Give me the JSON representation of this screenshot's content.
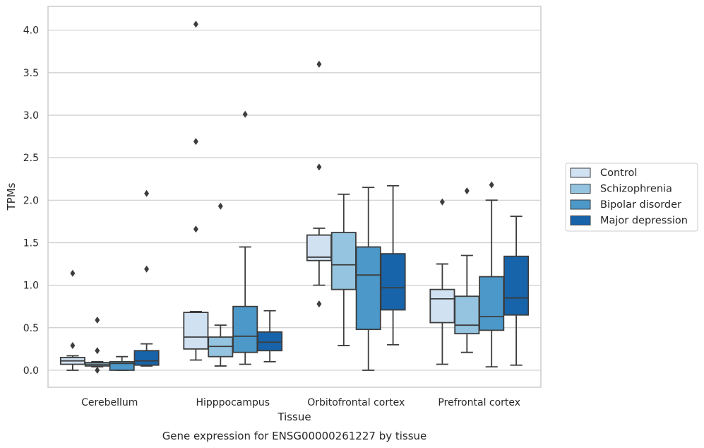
{
  "chart_data": {
    "type": "box",
    "xlabel": "Tissue",
    "ylabel": "TPMs",
    "caption": "Gene expression for ENSG00000261227 by tissue",
    "ylim": [
      -0.2,
      4.28
    ],
    "yticks": [
      0.0,
      0.5,
      1.0,
      1.5,
      2.0,
      2.5,
      3.0,
      3.5,
      4.0
    ],
    "yticklabels": [
      "0.0",
      "0.5",
      "1.0",
      "1.5",
      "2.0",
      "2.5",
      "3.0",
      "3.5",
      "4.0"
    ],
    "grid": "horizontal",
    "legend_position": "right",
    "categories": [
      "Cerebellum",
      "Hipppocampus",
      "Orbitofrontal cortex",
      "Prefrontal cortex"
    ],
    "series": [
      {
        "name": "Control",
        "color": "#d0e1f2",
        "boxes": [
          {
            "whislo": 0.0,
            "q1": 0.07,
            "med": 0.11,
            "q3": 0.15,
            "whishi": 0.17,
            "fliers": [
              0.29,
              1.14
            ]
          },
          {
            "whislo": 0.12,
            "q1": 0.25,
            "med": 0.39,
            "q3": 0.68,
            "whishi": 0.69,
            "fliers": [
              1.66,
              2.69,
              4.07
            ]
          },
          {
            "whislo": 1.0,
            "q1": 1.29,
            "med": 1.33,
            "q3": 1.59,
            "whishi": 1.67,
            "fliers": [
              0.78,
              2.39,
              3.6
            ]
          },
          {
            "whislo": 0.07,
            "q1": 0.56,
            "med": 0.84,
            "q3": 0.95,
            "whishi": 1.25,
            "fliers": [
              1.98
            ]
          }
        ]
      },
      {
        "name": "Schizophrenia",
        "color": "#94c4df",
        "boxes": [
          {
            "whislo": 0.04,
            "q1": 0.05,
            "med": 0.07,
            "q3": 0.09,
            "whishi": 0.1,
            "fliers": [
              0.0,
              0.23,
              0.59
            ]
          },
          {
            "whislo": 0.05,
            "q1": 0.16,
            "med": 0.28,
            "q3": 0.39,
            "whishi": 0.53,
            "fliers": [
              1.93
            ]
          },
          {
            "whislo": 0.29,
            "q1": 0.95,
            "med": 1.24,
            "q3": 1.62,
            "whishi": 2.07,
            "fliers": []
          },
          {
            "whislo": 0.21,
            "q1": 0.43,
            "med": 0.53,
            "q3": 0.87,
            "whishi": 1.35,
            "fliers": [
              2.11
            ]
          }
        ]
      },
      {
        "name": "Bipolar disorder",
        "color": "#4b98c9",
        "boxes": [
          {
            "whislo": 0.0,
            "q1": 0.0,
            "med": 0.08,
            "q3": 0.1,
            "whishi": 0.16,
            "fliers": []
          },
          {
            "whislo": 0.07,
            "q1": 0.21,
            "med": 0.4,
            "q3": 0.75,
            "whishi": 1.45,
            "fliers": [
              3.01
            ]
          },
          {
            "whislo": 0.0,
            "q1": 0.48,
            "med": 1.12,
            "q3": 1.45,
            "whishi": 2.15,
            "fliers": []
          },
          {
            "whislo": 0.04,
            "q1": 0.47,
            "med": 0.63,
            "q3": 1.1,
            "whishi": 2.0,
            "fliers": [
              2.18
            ]
          }
        ]
      },
      {
        "name": "Major depression",
        "color": "#1764ab",
        "boxes": [
          {
            "whislo": 0.05,
            "q1": 0.06,
            "med": 0.11,
            "q3": 0.23,
            "whishi": 0.31,
            "fliers": [
              1.19,
              2.08
            ]
          },
          {
            "whislo": 0.1,
            "q1": 0.23,
            "med": 0.33,
            "q3": 0.45,
            "whishi": 0.7,
            "fliers": []
          },
          {
            "whislo": 0.3,
            "q1": 0.71,
            "med": 0.97,
            "q3": 1.37,
            "whishi": 2.17,
            "fliers": []
          },
          {
            "whislo": 0.06,
            "q1": 0.65,
            "med": 0.85,
            "q3": 1.34,
            "whishi": 1.81,
            "fliers": []
          }
        ]
      }
    ]
  }
}
